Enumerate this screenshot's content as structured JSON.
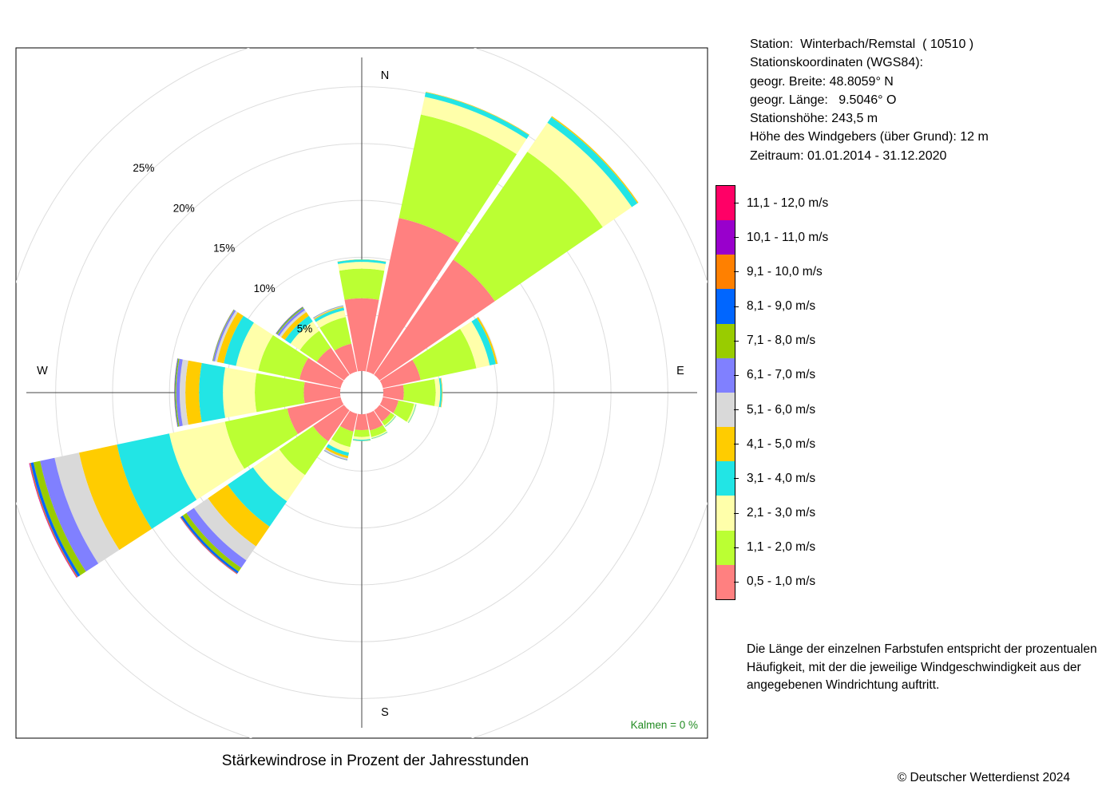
{
  "chart_data": {
    "type": "windrose",
    "title": "Stärkewindrose in Prozent der Jahresstunden",
    "directions": [
      "N",
      "NNO",
      "NO",
      "ONO",
      "O",
      "OSO",
      "SO",
      "SSO",
      "S",
      "SSW",
      "SW",
      "WSW",
      "W",
      "WNW",
      "NW",
      "NNW"
    ],
    "compass_labels": [
      "N",
      "E",
      "S",
      "W"
    ],
    "radial_ticks": [
      5,
      10,
      15,
      20,
      25
    ],
    "radial_tick_labels": [
      "5%",
      "10%",
      "15%",
      "20%",
      "25%"
    ],
    "inner_hole_percent": 1.9,
    "calm_text": "Kalmen  =  0 %",
    "grid": true,
    "series": [
      {
        "name": "0,5 - 1,0 m/s",
        "color": "#ff8080",
        "values": [
          6.4,
          13.8,
          12.3,
          3.4,
          1.8,
          1.4,
          1.2,
          1.5,
          1.4,
          1.6,
          3.3,
          4.8,
          3.2,
          3.7,
          2.9,
          2.5
        ]
      },
      {
        "name": "1,1 - 2,0 m/s",
        "color": "#bbff33",
        "values": [
          2.6,
          9.3,
          11.5,
          5.0,
          2.8,
          1.4,
          0.4,
          0.6,
          0.6,
          1.4,
          3.6,
          5.6,
          4.3,
          3.7,
          1.8,
          2.4
        ]
      },
      {
        "name": "2,1 - 3,0 m/s",
        "color": "#ffffaa",
        "values": [
          0.6,
          1.6,
          3.1,
          1.2,
          0.4,
          0.15,
          0.1,
          0.1,
          0.25,
          0.5,
          2.8,
          5.0,
          2.8,
          2.0,
          1.0,
          0.6
        ]
      },
      {
        "name": "3,1 - 4,0 m/s",
        "color": "#22e5e5",
        "values": [
          0.2,
          0.4,
          0.6,
          0.55,
          0.15,
          0.05,
          0.05,
          0.05,
          0.1,
          0.3,
          2.7,
          4.7,
          2.1,
          1.1,
          0.6,
          0.25
        ]
      },
      {
        "name": "4,1 - 5,0 m/s",
        "color": "#ffcc00",
        "values": [
          0.02,
          0.05,
          0.1,
          0.15,
          0.05,
          0.02,
          0.02,
          0.02,
          0.02,
          0.2,
          2.1,
          3.4,
          1.2,
          0.6,
          0.4,
          0.08
        ]
      },
      {
        "name": "5,1 - 6,0 m/s",
        "color": "#d9d9d9",
        "values": [
          0.0,
          0.01,
          0.02,
          0.05,
          0.02,
          0.0,
          0.0,
          0.0,
          0.01,
          0.12,
          1.5,
          2.2,
          0.5,
          0.2,
          0.2,
          0.05
        ]
      },
      {
        "name": "6,1 - 7,0 m/s",
        "color": "#8080ff",
        "values": [
          0.0,
          0.0,
          0.0,
          0.0,
          0.0,
          0.0,
          0.0,
          0.0,
          0.0,
          0.05,
          0.8,
          1.3,
          0.3,
          0.15,
          0.2,
          0.04
        ]
      },
      {
        "name": "7,1 - 8,0 m/s",
        "color": "#99cc00",
        "values": [
          0.0,
          0.0,
          0.0,
          0.0,
          0.0,
          0.0,
          0.0,
          0.0,
          0.0,
          0.02,
          0.4,
          0.6,
          0.1,
          0.05,
          0.1,
          0.02
        ]
      },
      {
        "name": "8,1 - 9,0 m/s",
        "color": "#0066ff",
        "values": [
          0.0,
          0.0,
          0.0,
          0.0,
          0.0,
          0.0,
          0.0,
          0.0,
          0.0,
          0.01,
          0.2,
          0.25,
          0.05,
          0.02,
          0.05,
          0.01
        ]
      },
      {
        "name": "9,1 - 10,0 m/s",
        "color": "#ff8000",
        "values": [
          0.0,
          0.0,
          0.0,
          0.0,
          0.0,
          0.0,
          0.0,
          0.0,
          0.0,
          0.0,
          0.05,
          0.08,
          0.02,
          0.01,
          0.02,
          0.0
        ]
      },
      {
        "name": "10,1 - 11,0 m/s",
        "color": "#9900cc",
        "values": [
          0.0,
          0.0,
          0.0,
          0.0,
          0.0,
          0.0,
          0.0,
          0.0,
          0.0,
          0.0,
          0.02,
          0.04,
          0.01,
          0.0,
          0.01,
          0.0
        ]
      },
      {
        "name": "11,1 - 12,0 m/s",
        "color": "#ff0066",
        "values": [
          0.0,
          0.0,
          0.0,
          0.0,
          0.0,
          0.0,
          0.0,
          0.0,
          0.0,
          0.0,
          0.01,
          0.02,
          0.0,
          0.0,
          0.0,
          0.0
        ]
      }
    ]
  },
  "station": {
    "lines": [
      "Station:  Winterbach/Remstal  ( 10510 )",
      "Stationskoordinaten (WGS84):",
      "geogr. Breite: 48.8059° N",
      "geogr. Länge:   9.5046° O",
      "Stationshöhe: 243,5 m",
      "Höhe des Windgebers (über Grund): 12 m",
      "Zeitraum: 01.01.2014 - 31.12.2020"
    ]
  },
  "note": "Die Länge der einzelnen Farbstufen entspricht der prozentualen Häufigkeit, mit der die jeweilige Windgeschwindigkeit aus der angegebenen Windrichtung auftritt.",
  "copyright": "© Deutscher Wetterdienst  2024"
}
